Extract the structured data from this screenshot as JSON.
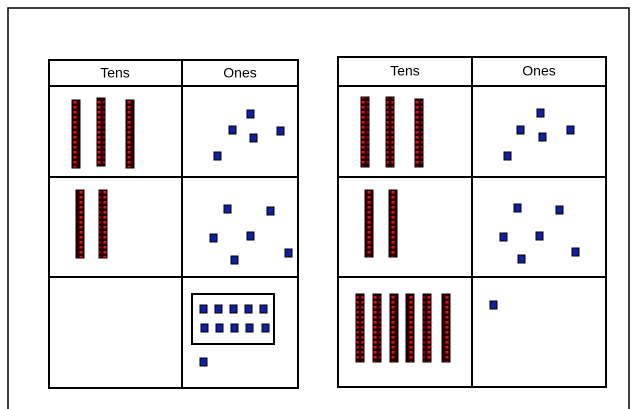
{
  "tables": [
    {
      "header": [
        "Tens",
        "Ones"
      ]
    },
    {
      "header": [
        "Tens",
        "Ones"
      ]
    }
  ]
}
